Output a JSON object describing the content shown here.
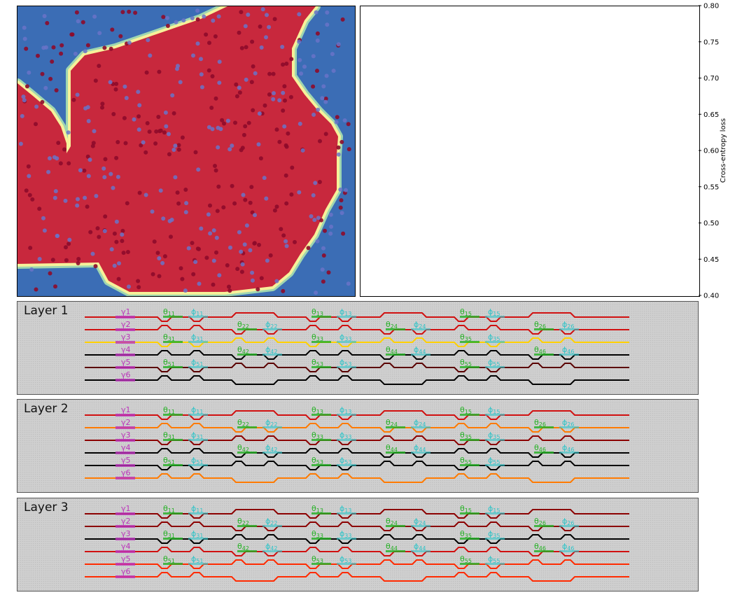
{
  "loss_axis": {
    "label": "Cross-entropy loss",
    "ticks": [
      "0.80",
      "0.75",
      "0.70",
      "0.65",
      "0.60",
      "0.55",
      "0.50",
      "0.45",
      "0.40"
    ]
  },
  "layers": [
    {
      "title": "Layer 1"
    },
    {
      "title": "Layer 2"
    },
    {
      "title": "Layer 3"
    }
  ],
  "mesh_labels": {
    "gammas": [
      "γ1",
      "γ2",
      "γ3",
      "γ4",
      "γ5",
      "γ6"
    ],
    "thetas": [
      {
        "base": "θ",
        "sub": "11",
        "col": 0,
        "row": 0
      },
      {
        "base": "θ",
        "sub": "31",
        "col": 0,
        "row": 2
      },
      {
        "base": "θ",
        "sub": "51",
        "col": 0,
        "row": 4
      },
      {
        "base": "θ",
        "sub": "22",
        "col": 1,
        "row": 1
      },
      {
        "base": "θ",
        "sub": "42",
        "col": 1,
        "row": 3
      },
      {
        "base": "θ",
        "sub": "13",
        "col": 2,
        "row": 0
      },
      {
        "base": "θ",
        "sub": "33",
        "col": 2,
        "row": 2
      },
      {
        "base": "θ",
        "sub": "53",
        "col": 2,
        "row": 4
      },
      {
        "base": "θ",
        "sub": "24",
        "col": 3,
        "row": 1
      },
      {
        "base": "θ",
        "sub": "44",
        "col": 3,
        "row": 3
      },
      {
        "base": "θ",
        "sub": "15",
        "col": 4,
        "row": 0
      },
      {
        "base": "θ",
        "sub": "35",
        "col": 4,
        "row": 2
      },
      {
        "base": "θ",
        "sub": "55",
        "col": 4,
        "row": 4
      },
      {
        "base": "θ",
        "sub": "26",
        "col": 5,
        "row": 1
      },
      {
        "base": "θ",
        "sub": "46",
        "col": 5,
        "row": 3
      }
    ],
    "phis": [
      {
        "base": "ϕ",
        "sub": "11",
        "col": 0,
        "row": 0
      },
      {
        "base": "ϕ",
        "sub": "31",
        "col": 0,
        "row": 2
      },
      {
        "base": "ϕ",
        "sub": "51",
        "col": 0,
        "row": 4
      },
      {
        "base": "ϕ",
        "sub": "22",
        "col": 1,
        "row": 1
      },
      {
        "base": "ϕ",
        "sub": "42",
        "col": 1,
        "row": 3
      },
      {
        "base": "ϕ",
        "sub": "13",
        "col": 2,
        "row": 0
      },
      {
        "base": "ϕ",
        "sub": "33",
        "col": 2,
        "row": 2
      },
      {
        "base": "ϕ",
        "sub": "53",
        "col": 2,
        "row": 4
      },
      {
        "base": "ϕ",
        "sub": "24",
        "col": 3,
        "row": 1
      },
      {
        "base": "ϕ",
        "sub": "44",
        "col": 3,
        "row": 3
      },
      {
        "base": "ϕ",
        "sub": "15",
        "col": 4,
        "row": 0
      },
      {
        "base": "ϕ",
        "sub": "35",
        "col": 4,
        "row": 2
      },
      {
        "base": "ϕ",
        "sub": "55",
        "col": 4,
        "row": 4
      },
      {
        "base": "ϕ",
        "sub": "26",
        "col": 5,
        "row": 1
      },
      {
        "base": "ϕ",
        "sub": "46",
        "col": 5,
        "row": 3
      }
    ]
  },
  "colors": {
    "region_red": "#c8283d",
    "region_blue": "#3b6db5",
    "boundary_yellow": "#f6f19a",
    "boundary_teal": "#9fd6b0",
    "point_red": "#8e0a2a",
    "point_blue": "#6a73c8",
    "theta_label": "#22b022",
    "phi_label": "#2ec4c8",
    "gamma_label": "#bb33bb",
    "wire_palette": [
      "#d01010",
      "#8b0000",
      "#000000",
      "#ffd000",
      "#ff7a00",
      "#ff2a00",
      "#5a0000"
    ]
  },
  "chart_data": [
    {
      "type": "scatter",
      "description_of_regions": "decision boundary: red class region in center, blue class region in corners",
      "classes": [
        "red",
        "blue"
      ]
    },
    {
      "type": "line",
      "ylabel": "Cross-entropy loss",
      "ylim": [
        0.4,
        0.8
      ],
      "yticks": [
        0.8,
        0.75,
        0.7,
        0.65,
        0.6,
        0.55,
        0.5,
        0.45,
        0.4
      ],
      "series": []
    }
  ]
}
